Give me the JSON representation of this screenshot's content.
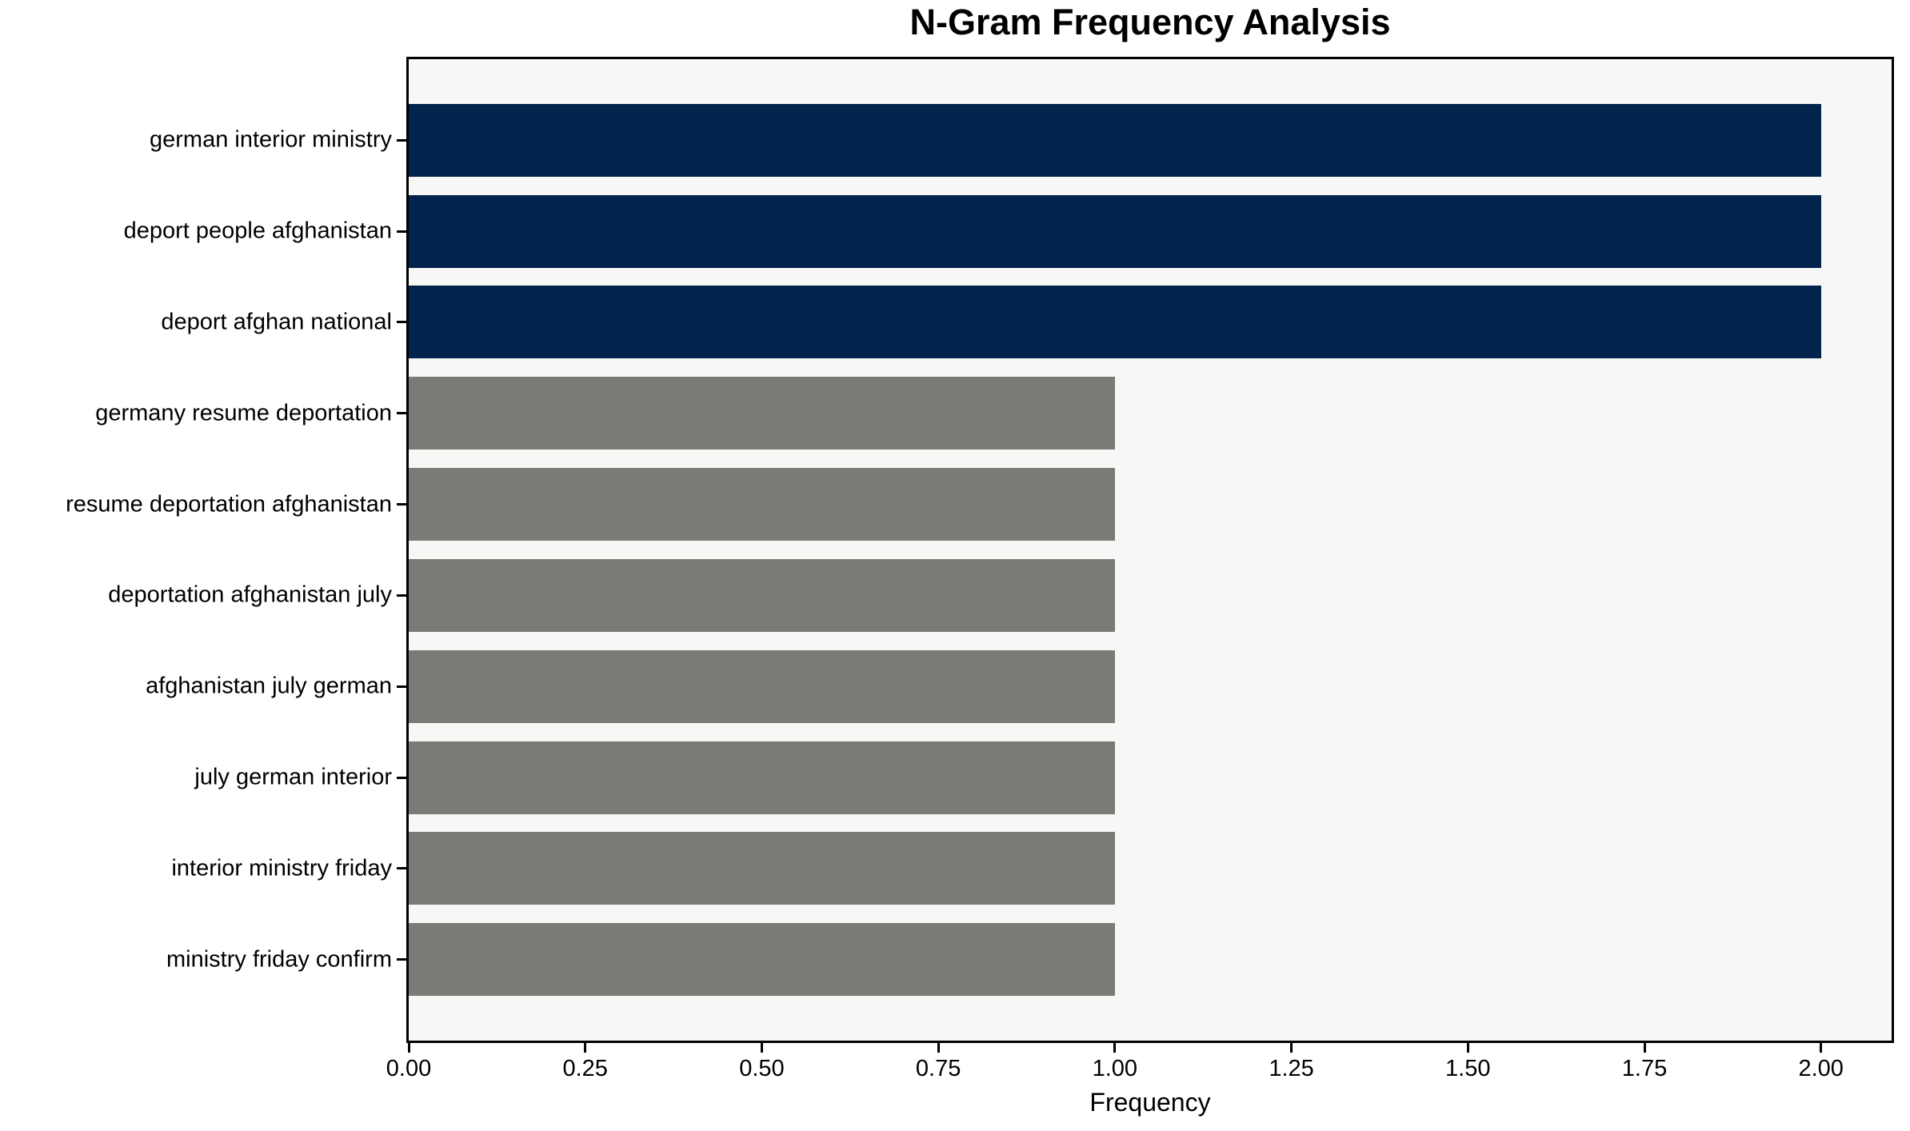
{
  "chart_data": {
    "type": "bar",
    "orientation": "horizontal",
    "title": "N-Gram Frequency Analysis",
    "xlabel": "Frequency",
    "ylabel": "",
    "categories": [
      "german interior ministry",
      "deport people afghanistan",
      "deport afghan national",
      "germany resume deportation",
      "resume deportation afghanistan",
      "deportation afghanistan july",
      "afghanistan july german",
      "july german interior",
      "interior ministry friday",
      "ministry friday confirm"
    ],
    "values": [
      2,
      2,
      2,
      1,
      1,
      1,
      1,
      1,
      1,
      1
    ],
    "bar_colors": [
      "#02234c",
      "#02234c",
      "#02234c",
      "#7a7a77",
      "#7a7a77",
      "#7a7a77",
      "#7a7a77",
      "#7a7a77",
      "#7a7a77",
      "#7a7a77"
    ],
    "xlim": [
      0,
      2.1
    ],
    "xticks": [
      {
        "value": 0.0,
        "label": "0.00"
      },
      {
        "value": 0.25,
        "label": "0.25"
      },
      {
        "value": 0.5,
        "label": "0.50"
      },
      {
        "value": 0.75,
        "label": "0.75"
      },
      {
        "value": 1.0,
        "label": "1.00"
      },
      {
        "value": 1.25,
        "label": "1.25"
      },
      {
        "value": 1.5,
        "label": "1.50"
      },
      {
        "value": 1.75,
        "label": "1.75"
      },
      {
        "value": 2.0,
        "label": "2.00"
      }
    ],
    "grid": false,
    "legend": null,
    "colors": {
      "highlight_bar": "#02234c",
      "default_bar": "#7a7a77",
      "plot_background": "#f7f7f6",
      "figure_background": "#ffffff",
      "axis": "#000000"
    }
  }
}
